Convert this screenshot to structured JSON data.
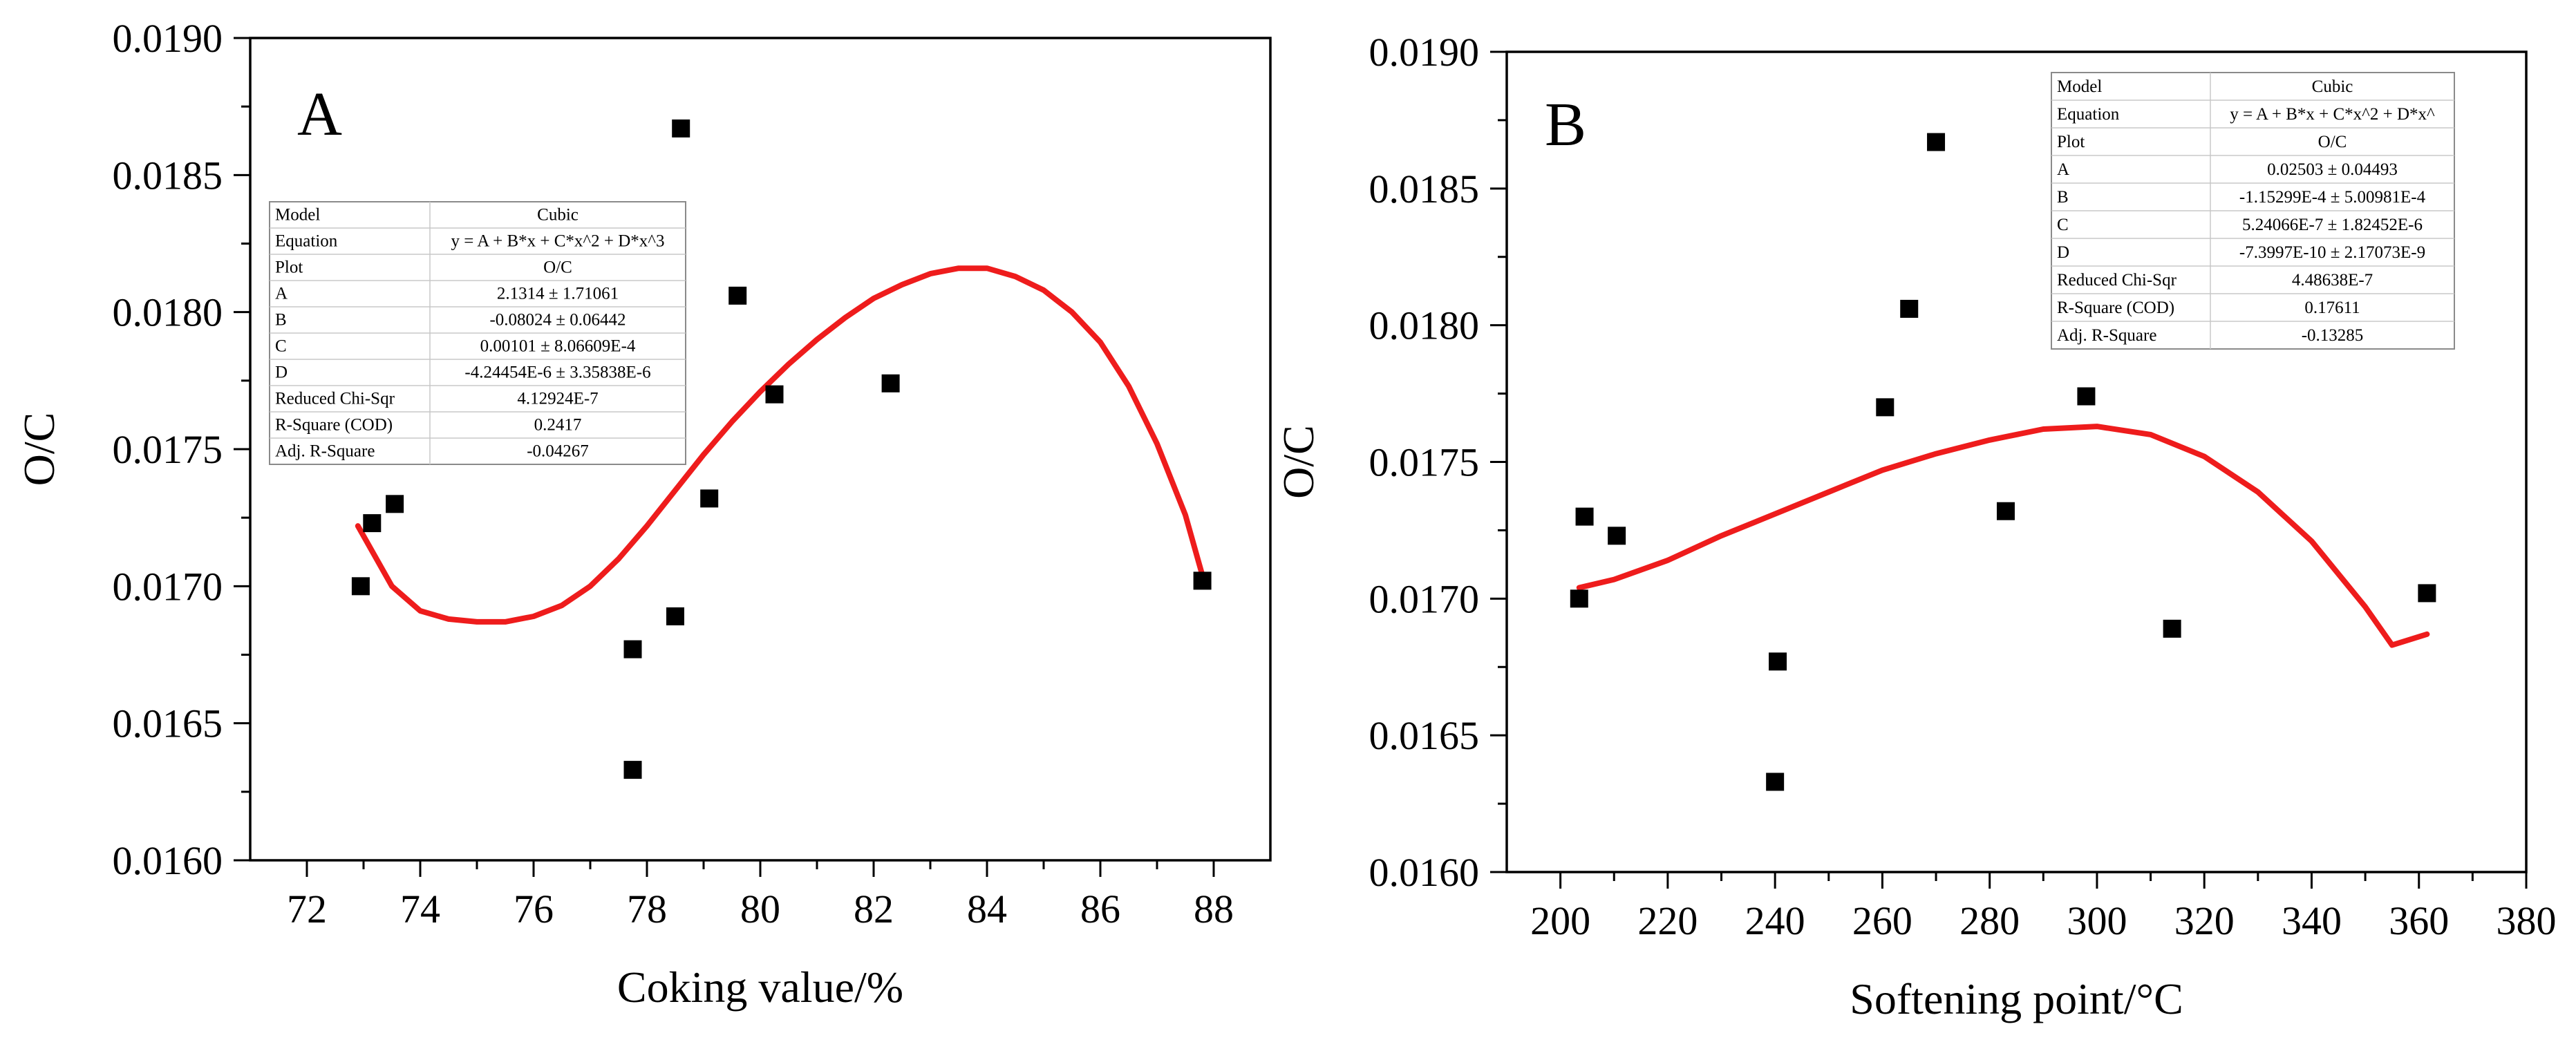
{
  "chart_data": [
    {
      "type": "scatter",
      "panel_label": "A",
      "xlabel": "Coking value/%",
      "ylabel": "O/C",
      "xlim": [
        71,
        89
      ],
      "ylim": [
        0.016,
        0.019
      ],
      "xticks": [
        72,
        74,
        76,
        78,
        80,
        82,
        84,
        86,
        88
      ],
      "yticks": [
        0.016,
        0.0165,
        0.017,
        0.0175,
        0.018,
        0.0185,
        0.019
      ],
      "ytick_labels": [
        "0.0160",
        "0.0165",
        "0.0170",
        "0.0175",
        "0.0180",
        "0.0185",
        "0.0190"
      ],
      "series": [
        {
          "name": "O/C",
          "marker": "square",
          "points": [
            {
              "x": 72.95,
              "y": 0.017
            },
            {
              "x": 73.15,
              "y": 0.01723
            },
            {
              "x": 73.55,
              "y": 0.0173
            },
            {
              "x": 77.75,
              "y": 0.01677
            },
            {
              "x": 77.75,
              "y": 0.01633
            },
            {
              "x": 78.5,
              "y": 0.01689
            },
            {
              "x": 78.6,
              "y": 0.01867
            },
            {
              "x": 79.1,
              "y": 0.01732
            },
            {
              "x": 79.6,
              "y": 0.01806
            },
            {
              "x": 80.25,
              "y": 0.0177
            },
            {
              "x": 82.3,
              "y": 0.01774
            },
            {
              "x": 87.8,
              "y": 0.01702
            }
          ]
        }
      ],
      "fit": {
        "name": "Cubic fit",
        "color": "#ee1c1c",
        "points": [
          [
            72.9,
            0.01722
          ],
          [
            73.5,
            0.017
          ],
          [
            74.0,
            0.01691
          ],
          [
            74.5,
            0.01688
          ],
          [
            75.0,
            0.01687
          ],
          [
            75.5,
            0.01687
          ],
          [
            76.0,
            0.01689
          ],
          [
            76.5,
            0.01693
          ],
          [
            77.0,
            0.017
          ],
          [
            77.5,
            0.0171
          ],
          [
            78.0,
            0.01722
          ],
          [
            78.5,
            0.01735
          ],
          [
            79.0,
            0.01748
          ],
          [
            79.5,
            0.0176
          ],
          [
            80.0,
            0.01771
          ],
          [
            80.5,
            0.01781
          ],
          [
            81.0,
            0.0179
          ],
          [
            81.5,
            0.01798
          ],
          [
            82.0,
            0.01805
          ],
          [
            82.5,
            0.0181
          ],
          [
            83.0,
            0.01814
          ],
          [
            83.5,
            0.01816
          ],
          [
            84.0,
            0.01816
          ],
          [
            84.5,
            0.01813
          ],
          [
            85.0,
            0.01808
          ],
          [
            85.5,
            0.018
          ],
          [
            86.0,
            0.01789
          ],
          [
            86.5,
            0.01773
          ],
          [
            87.0,
            0.01752
          ],
          [
            87.5,
            0.01726
          ],
          [
            87.8,
            0.01704
          ]
        ]
      },
      "fit_table": [
        {
          "label": "Model",
          "value": "Cubic"
        },
        {
          "label": "Equation",
          "value": "y = A + B*x + C*x^2 + D*x^3"
        },
        {
          "label": "Plot",
          "value": "O/C"
        },
        {
          "label": "A",
          "value": "2.1314 ± 1.71061"
        },
        {
          "label": "B",
          "value": "-0.08024 ± 0.06442"
        },
        {
          "label": "C",
          "value": "0.00101 ± 8.06609E-4"
        },
        {
          "label": "D",
          "value": "-4.24454E-6 ± 3.35838E-6"
        },
        {
          "label": "Reduced Chi-Sqr",
          "value": "4.12924E-7"
        },
        {
          "label": "R-Square (COD)",
          "value": "0.2417"
        },
        {
          "label": "Adj. R-Square",
          "value": "-0.04267"
        }
      ]
    },
    {
      "type": "scatter",
      "panel_label": "B",
      "xlabel": "Softening point/°C",
      "ylabel": "O/C",
      "xlim": [
        190,
        380
      ],
      "ylim": [
        0.016,
        0.019
      ],
      "xticks": [
        200,
        220,
        240,
        260,
        280,
        300,
        320,
        340,
        360,
        380
      ],
      "yticks": [
        0.016,
        0.0165,
        0.017,
        0.0175,
        0.018,
        0.0185,
        0.019
      ],
      "ytick_labels": [
        "0.0160",
        "0.0165",
        "0.0170",
        "0.0175",
        "0.0180",
        "0.0185",
        "0.0190"
      ],
      "series": [
        {
          "name": "O/C",
          "marker": "square",
          "points": [
            {
              "x": 203.5,
              "y": 0.017
            },
            {
              "x": 204.5,
              "y": 0.0173
            },
            {
              "x": 210.5,
              "y": 0.01723
            },
            {
              "x": 240.5,
              "y": 0.01677
            },
            {
              "x": 240.0,
              "y": 0.01633
            },
            {
              "x": 260.5,
              "y": 0.0177
            },
            {
              "x": 265.0,
              "y": 0.01806
            },
            {
              "x": 270.0,
              "y": 0.01867
            },
            {
              "x": 283.0,
              "y": 0.01732
            },
            {
              "x": 298.0,
              "y": 0.01774
            },
            {
              "x": 314.0,
              "y": 0.01689
            },
            {
              "x": 361.5,
              "y": 0.01702
            }
          ]
        }
      ],
      "fit": {
        "name": "Cubic fit",
        "color": "#ee1c1c",
        "points": [
          [
            203.5,
            0.01704
          ],
          [
            210,
            0.01707
          ],
          [
            220,
            0.01714
          ],
          [
            230,
            0.01723
          ],
          [
            240,
            0.01731
          ],
          [
            250,
            0.01739
          ],
          [
            260,
            0.01747
          ],
          [
            270,
            0.01753
          ],
          [
            280,
            0.01758
          ],
          [
            290,
            0.01762
          ],
          [
            300,
            0.01763
          ],
          [
            310,
            0.0176
          ],
          [
            320,
            0.01752
          ],
          [
            330,
            0.01739
          ],
          [
            340,
            0.01721
          ],
          [
            350,
            0.01697
          ],
          [
            355,
            0.01683
          ],
          [
            361.5,
            0.01687
          ]
        ]
      },
      "fit_table": [
        {
          "label": "Model",
          "value": "Cubic"
        },
        {
          "label": "Equation",
          "value": "y = A + B*x + C*x^2 + D*x^"
        },
        {
          "label": "Plot",
          "value": "O/C"
        },
        {
          "label": "A",
          "value": "0.02503 ± 0.04493"
        },
        {
          "label": "B",
          "value": "-1.15299E-4 ± 5.00981E-4"
        },
        {
          "label": "C",
          "value": "5.24066E-7 ± 1.82452E-6"
        },
        {
          "label": "D",
          "value": "-7.3997E-10 ± 2.17073E-9"
        },
        {
          "label": "Reduced Chi-Sqr",
          "value": "4.48638E-7"
        },
        {
          "label": "R-Square (COD)",
          "value": "0.17611"
        },
        {
          "label": "Adj. R-Square",
          "value": "-0.13285"
        }
      ]
    }
  ]
}
